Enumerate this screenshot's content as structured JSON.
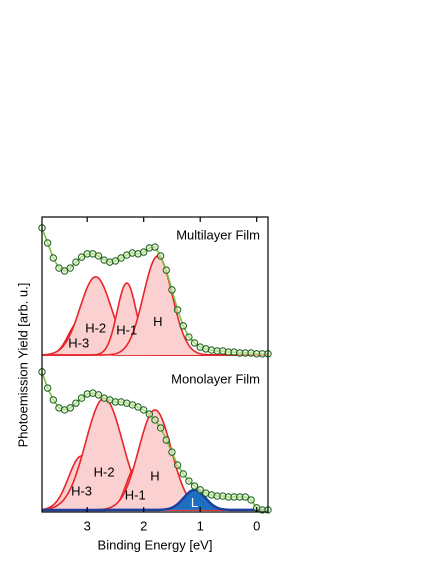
{
  "chart_data": {
    "type": "line",
    "xlabel": "Binding Energy [eV]",
    "ylabel": "Photoemission Yield [arb. u.]",
    "xlim": [
      3.8,
      -0.2
    ],
    "xticks": [
      3,
      2,
      1,
      0
    ],
    "ylim": [
      0,
      100
    ],
    "x": [
      3.8,
      3.7,
      3.6,
      3.5,
      3.4,
      3.3,
      3.2,
      3.1,
      3.0,
      2.9,
      2.8,
      2.7,
      2.6,
      2.5,
      2.4,
      2.3,
      2.2,
      2.1,
      2.0,
      1.9,
      1.8,
      1.7,
      1.6,
      1.5,
      1.4,
      1.3,
      1.2,
      1.1,
      1.0,
      0.9,
      0.8,
      0.7,
      0.6,
      0.5,
      0.4,
      0.3,
      0.2,
      0.1,
      0.0,
      -0.1,
      -0.2
    ],
    "series": [
      {
        "name": "Multilayer Film",
        "color": "#7cc242",
        "marker_color": "#1b5e20",
        "values": [
          96.3,
          91.2,
          86.1,
          82.7,
          81.7,
          82.7,
          84.7,
          86.4,
          87.5,
          87.5,
          86.8,
          85.4,
          84.7,
          85.1,
          86.1,
          87.1,
          87.8,
          87.5,
          88.1,
          89.5,
          89.8,
          86.8,
          82.0,
          75.3,
          68.5,
          63.1,
          59.3,
          57.3,
          55.9,
          55.3,
          54.9,
          54.6,
          54.6,
          54.2,
          54.2,
          53.9,
          53.9,
          53.9,
          53.6,
          53.6,
          53.6
        ],
        "baseline": 53.2,
        "peaks": [
          {
            "name": "H-3",
            "center": 3.15,
            "height": 11.2,
            "fwhm": 0.43,
            "color": "#e8252a",
            "fill": "#fbd0d0"
          },
          {
            "name": "H-2",
            "center": 2.85,
            "height": 26.5,
            "fwhm": 0.65,
            "color": "#e8252a",
            "fill": "#fbd0d0"
          },
          {
            "name": "H-1",
            "center": 2.3,
            "height": 24.4,
            "fwhm": 0.4,
            "color": "#e8252a",
            "fill": "#fbd0d0"
          },
          {
            "name": "H",
            "center": 1.75,
            "height": 33.6,
            "fwhm": 0.6,
            "color": "#e8252a",
            "fill": "#fbd0d0"
          }
        ]
      },
      {
        "name": "Monolayer Film",
        "color": "#7cc242",
        "marker_color": "#1b5e20",
        "values": [
          47.5,
          42.0,
          38.0,
          35.3,
          34.6,
          35.3,
          36.9,
          38.6,
          40.0,
          40.3,
          39.7,
          38.6,
          38.0,
          37.3,
          37.3,
          36.9,
          36.3,
          35.6,
          34.6,
          33.2,
          31.2,
          28.5,
          24.4,
          20.3,
          15.9,
          12.9,
          10.5,
          8.8,
          7.5,
          6.4,
          5.8,
          5.4,
          5.4,
          5.1,
          5.1,
          5.1,
          5.1,
          4.1,
          1.4,
          0.7,
          0.7
        ],
        "baseline": 0.7,
        "peaks": [
          {
            "name": "H-3",
            "center": 3.1,
            "height": 18.3,
            "fwhm": 0.54,
            "color": "#e8252a",
            "fill": "#fbd0d0"
          },
          {
            "name": "H-2",
            "center": 2.7,
            "height": 37.9,
            "fwhm": 0.77,
            "color": "#e8252a",
            "fill": "#fbd0d0"
          },
          {
            "name": "H-1",
            "center": 2.15,
            "height": 14.2,
            "fwhm": 0.38,
            "color": "#e8252a",
            "fill": "#fbd0d0"
          },
          {
            "name": "H",
            "center": 1.8,
            "height": 33.9,
            "fwhm": 0.68,
            "color": "#e8252a",
            "fill": "#fbd0d0"
          },
          {
            "name": "L",
            "center": 1.1,
            "height": 6.8,
            "fwhm": 0.45,
            "color": "#1f3fa0",
            "fill": "#1f6fc0",
            "label_color": "#ffffff"
          }
        ]
      }
    ]
  }
}
